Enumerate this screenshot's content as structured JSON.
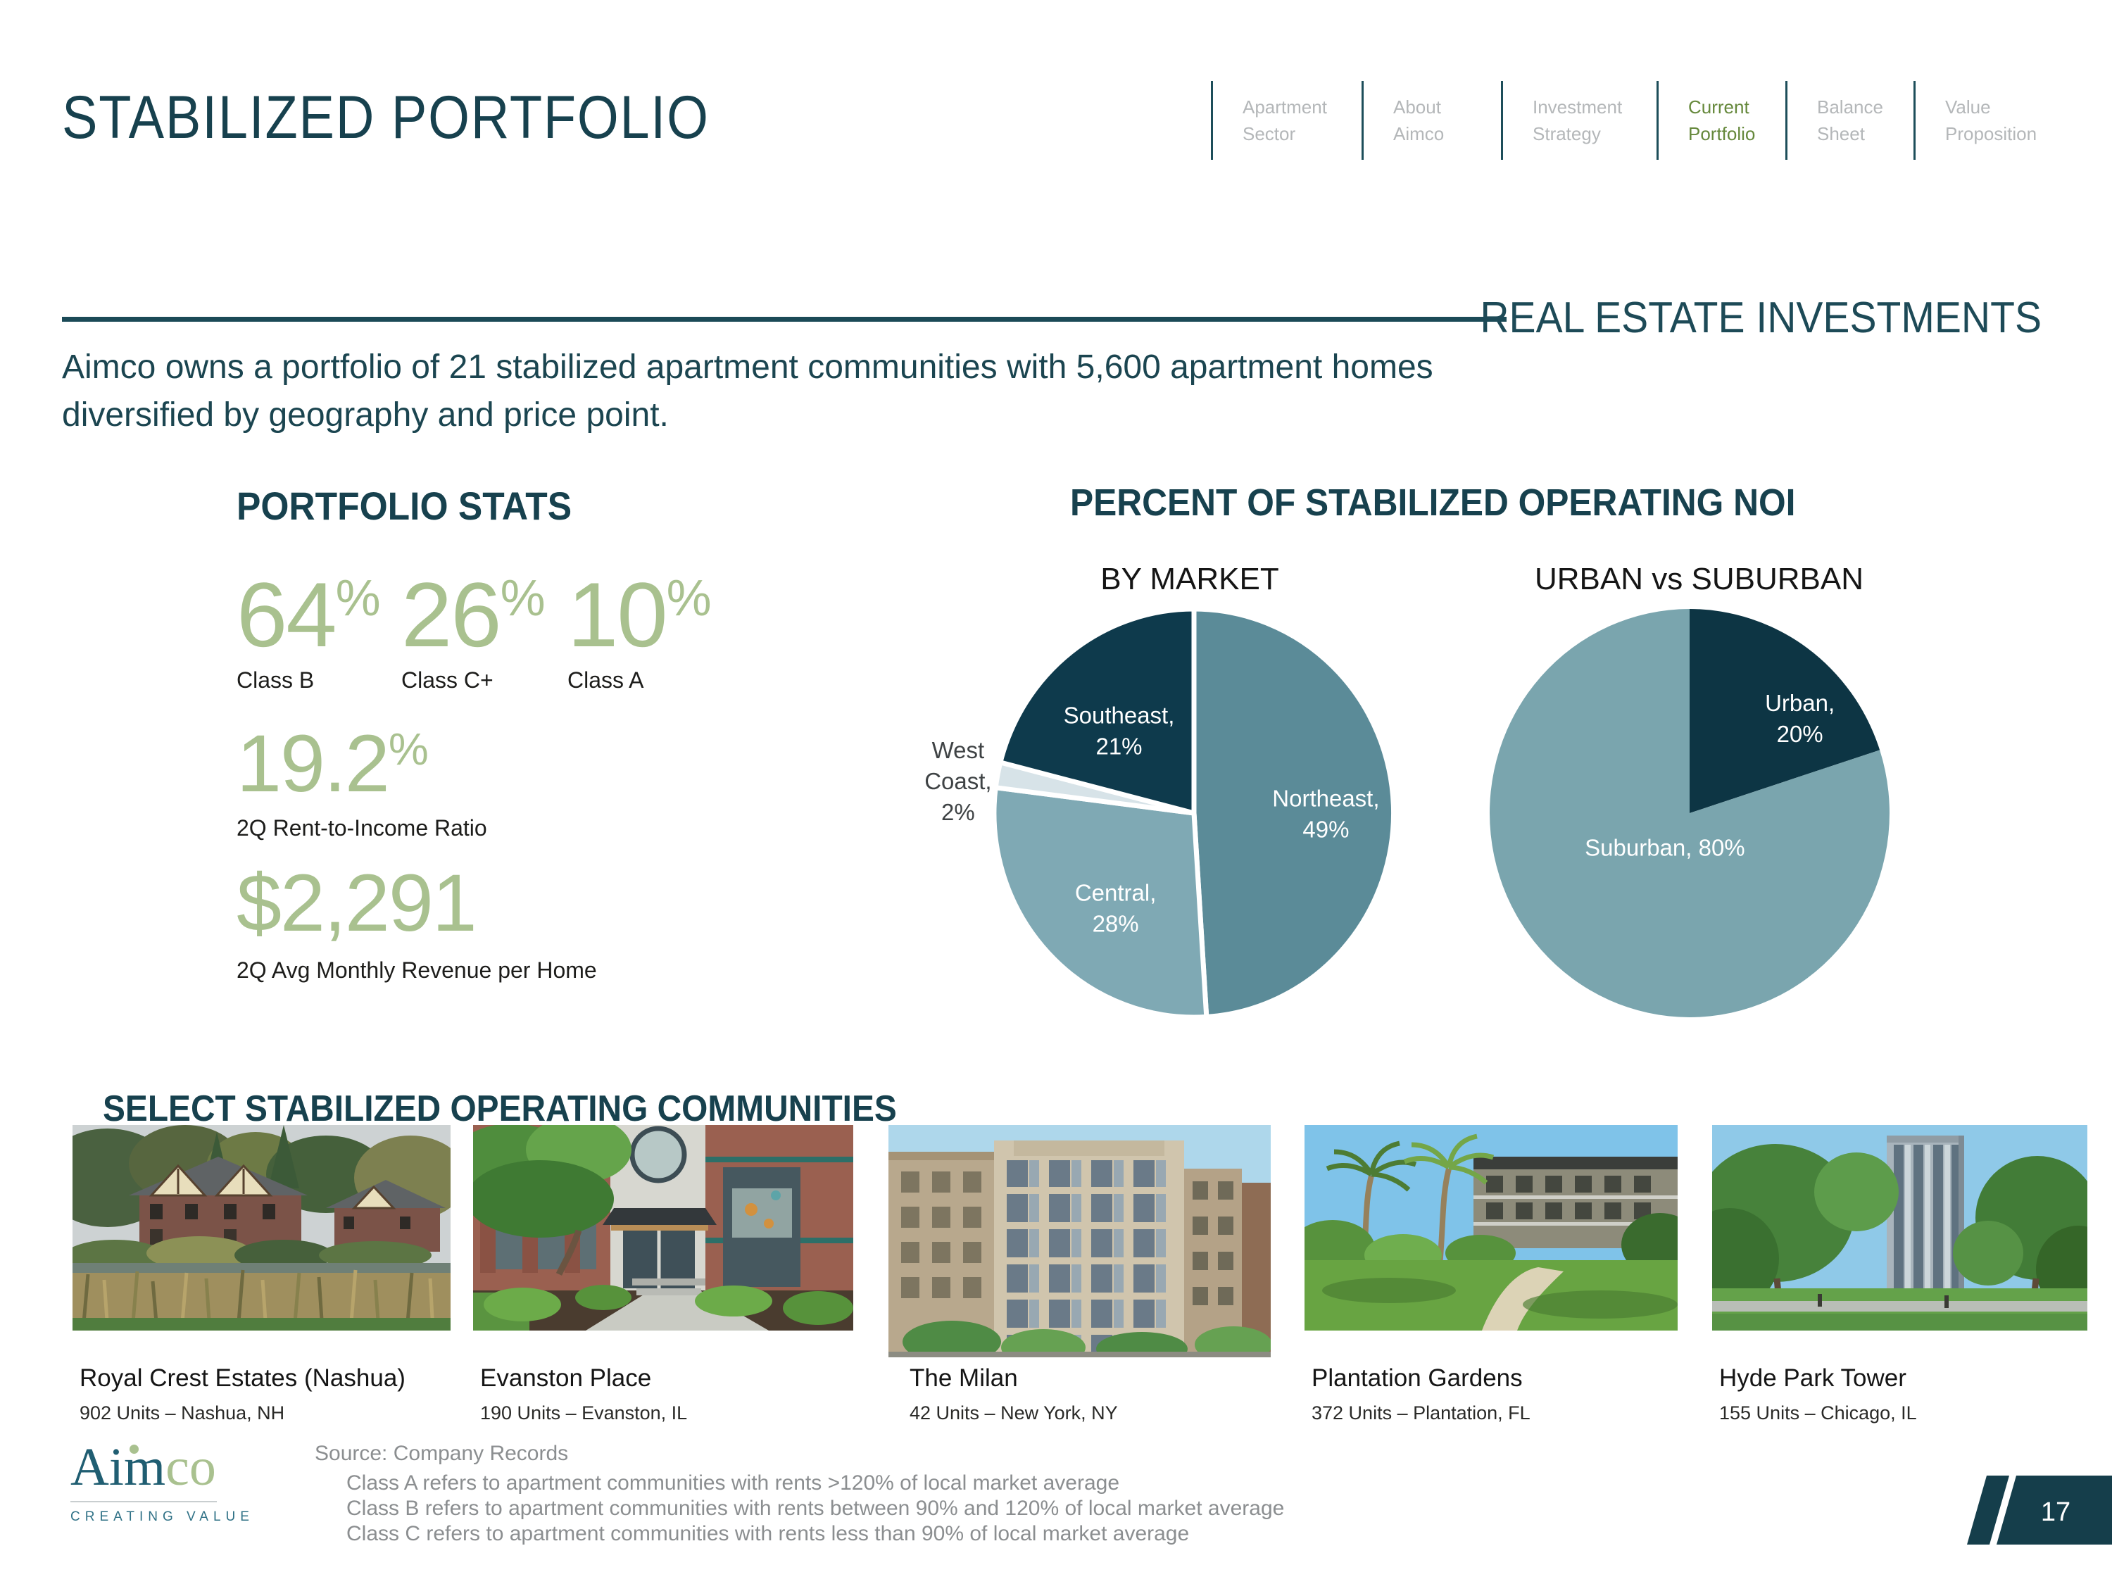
{
  "slide": {
    "title": "STABILIZED PORTFOLIO",
    "page_number": "17"
  },
  "nav": {
    "items": [
      {
        "line1": "Apartment",
        "line2": "Sector",
        "active": false
      },
      {
        "line1": "About",
        "line2": "Aimco",
        "active": false
      },
      {
        "line1": "Investment",
        "line2": "Strategy",
        "active": false
      },
      {
        "line1": "Current",
        "line2": "Portfolio",
        "active": true
      },
      {
        "line1": "Balance",
        "line2": "Sheet",
        "active": false
      },
      {
        "line1": "Value",
        "line2": "Proposition",
        "active": false
      }
    ]
  },
  "header_right": "REAL ESTATE INVESTMENTS",
  "intro_lines": [
    "Aimco owns a portfolio of 21 stabilized apartment communities with 5,600 apartment homes",
    "diversified by geography and price point."
  ],
  "stats": {
    "heading": "PORTFOLIO STATS",
    "class_stats": [
      {
        "value": "64",
        "unit": "%",
        "label": "Class B"
      },
      {
        "value": "26",
        "unit": "%",
        "label": "Class C+"
      },
      {
        "value": "10",
        "unit": "%",
        "label": "Class A"
      }
    ],
    "ratio_stat": {
      "value": "19.2",
      "unit": "%",
      "label": "2Q Rent-to-Income Ratio"
    },
    "revenue_stat": {
      "value": "$2,291",
      "label": "2Q Avg Monthly Revenue per Home"
    }
  },
  "noi": {
    "heading": "PERCENT OF STABILIZED OPERATING NOI",
    "left_title": "BY MARKET",
    "right_title": "URBAN vs SUBURBAN"
  },
  "chart_data": [
    {
      "type": "pie",
      "title": "BY MARKET",
      "start": "12 o'clock, clockwise",
      "slices": [
        {
          "label": "Northeast",
          "value": 49,
          "color": "#5b8b98",
          "label_lines": [
            "Northeast,",
            "49%"
          ],
          "label_color": "#ffffff"
        },
        {
          "label": "Central",
          "value": 28,
          "color": "#7fa9b4",
          "label_lines": [
            "Central,",
            "28%"
          ],
          "label_color": "#ffffff"
        },
        {
          "label": "West Coast",
          "value": 2,
          "color": "#d7e3e8",
          "label_lines": [
            "West",
            "Coast,",
            "2%"
          ],
          "label_color": "#3f4345"
        },
        {
          "label": "Southeast",
          "value": 21,
          "color": "#0e3a4c",
          "label_lines": [
            "Southeast,",
            "21%"
          ],
          "label_color": "#ffffff"
        }
      ]
    },
    {
      "type": "pie",
      "title": "URBAN vs SUBURBAN",
      "start": "12 o'clock, clockwise",
      "slices": [
        {
          "label": "Urban",
          "value": 20,
          "color": "#0d3544",
          "label_lines": [
            "Urban,",
            "20%"
          ],
          "label_color": "#ffffff"
        },
        {
          "label": "Suburban",
          "value": 80,
          "color": "#7aa5ae",
          "label_lines": [
            "Suburban, 80%"
          ],
          "label_color": "#ffffff"
        }
      ]
    }
  ],
  "communities": {
    "heading": "SELECT STABILIZED OPERATING COMMUNITIES",
    "items": [
      {
        "name": "Royal Crest Estates (Nashua)",
        "units": "902 Units – Nashua, NH"
      },
      {
        "name": "Evanston Place",
        "units": "190 Units – Evanston, IL"
      },
      {
        "name": "The Milan",
        "units": "42 Units – New York, NY"
      },
      {
        "name": "Plantation Gardens",
        "units": "372 Units – Plantation, FL"
      },
      {
        "name": "Hyde Park Tower",
        "units": "155 Units – Chicago, IL"
      }
    ]
  },
  "footer": {
    "source": "Source: Company Records",
    "notes": [
      "Class A refers to apartment communities with rents >120% of local market average",
      "Class B refers to apartment communities with rents between 90% and 120% of local market average",
      "Class C refers to apartment communities with rents less than 90% of local market average"
    ],
    "logo": {
      "part1": "Aim",
      "part2": "co",
      "tagline": "CREATING VALUE"
    }
  },
  "colors": {
    "teal_dark": "#17414e",
    "nav_active_green": "#65883b",
    "nav_inactive_gray": "#b4b7b9",
    "sage_green": "#a9c18f",
    "footer_gray": "#8b8e90",
    "divider_teal": "#1b4a57"
  }
}
